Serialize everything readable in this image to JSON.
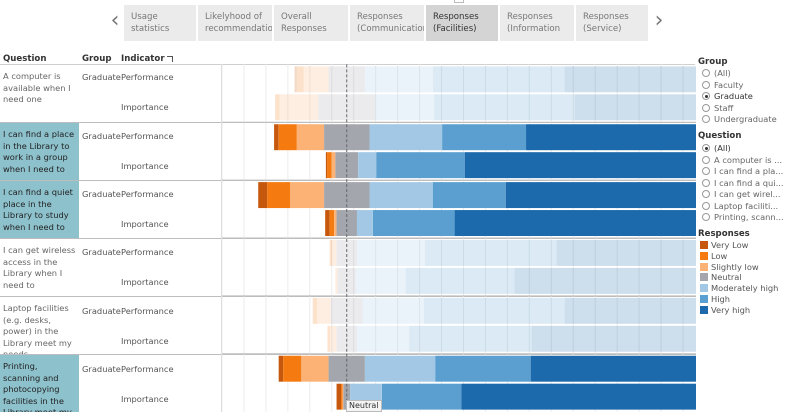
{
  "tabs": [
    {
      "label": "Usage statistics"
    },
    {
      "label": "Likelyhood of recommendation"
    },
    {
      "label": "Overall Responses"
    },
    {
      "label": "Responses (Communication)"
    },
    {
      "label": "Responses (Facilities)",
      "active": true
    },
    {
      "label": "Responses (Information"
    },
    {
      "label": "Responses (Service)"
    }
  ],
  "nav": {
    "left": "‹",
    "right": "›"
  },
  "headers": {
    "question": "Question",
    "group": "Group",
    "indicator": "Indicator"
  },
  "rows": [
    {
      "question": "A computer is available when I need one",
      "group": "Graduate",
      "performance": "Performance",
      "importance": "Importance",
      "highlight": false
    },
    {
      "question": "I can find a place in the Library to work in a group when I need to",
      "group": "Graduate",
      "performance": "Performance",
      "importance": "Importance",
      "highlight": true
    },
    {
      "question": "I can find a quiet place in the Library to study when I need to",
      "group": "Graduate",
      "performance": "Performance",
      "importance": "Importance",
      "highlight": true
    },
    {
      "question": "I can get wireless access in the Library when I need to",
      "group": "Graduate",
      "performance": "Performance",
      "importance": "Importance",
      "highlight": false
    },
    {
      "question": "Laptop facilities (e.g. desks, power) in the Library meet my needs",
      "group": "Graduate",
      "performance": "Performance",
      "importance": "Importance",
      "highlight": false
    },
    {
      "question": "Printing, scanning and photocopying facilities in the Library meet my nee..",
      "group": "Graduate",
      "performance": "Performance",
      "importance": "Importance",
      "highlight": true
    }
  ],
  "group_filter": {
    "title": "Group",
    "options": [
      "(All)",
      "Faculty",
      "Graduate",
      "Staff",
      "Undergraduate"
    ],
    "selected": "Graduate"
  },
  "question_filter": {
    "title": "Question",
    "options": [
      "(All)",
      "A computer is ...",
      "I can find a pla...",
      "I can find a qui...",
      "I can get wirel...",
      "Laptop faciliti...",
      "Printing, scann..."
    ],
    "selected": "(All)"
  },
  "legend": {
    "title": "Responses",
    "items": [
      {
        "label": "Very Low",
        "color": "#c5580d"
      },
      {
        "label": "Low",
        "color": "#f57b10"
      },
      {
        "label": "Slightly low",
        "color": "#fcb275"
      },
      {
        "label": "Neutral",
        "color": "#a4a6ad"
      },
      {
        "label": "Moderately high",
        "color": "#a3c8e6"
      },
      {
        "label": "High",
        "color": "#5a9fcf"
      },
      {
        "label": "Very high",
        "color": "#1c6aab"
      }
    ]
  },
  "tooltip": "Neutral",
  "chart_data": {
    "type": "bar",
    "categories": [
      "A computer is available when I need one / Performance",
      "A computer is available when I need one / Importance",
      "Place to work in a group / Performance",
      "Place to work in a group / Importance",
      "Quiet place to study / Performance",
      "Quiet place to study / Importance",
      "Wireless access / Performance",
      "Wireless access / Importance",
      "Laptop facilities / Performance",
      "Laptop facilities / Importance",
      "Printing, scanning and photocopying / Performance",
      "Printing, scanning and photocopying / Importance"
    ],
    "neutral_centered": true,
    "series": [
      {
        "name": "Very Low",
        "values": [
          0.5,
          0.0,
          1.0,
          0.3,
          2.0,
          1.0,
          0.0,
          0.0,
          0.0,
          0.0,
          1.0,
          1.0
        ]
      },
      {
        "name": "Low",
        "values": [
          1.5,
          1.0,
          4.0,
          1.0,
          5.0,
          1.0,
          0.5,
          0.0,
          1.0,
          0.5,
          4.0,
          0.3
        ]
      },
      {
        "name": "Slightly low",
        "values": [
          5.5,
          8.5,
          6.0,
          0.8,
          7.5,
          0.5,
          1.0,
          0.5,
          3.0,
          1.5,
          6.0,
          0.2
        ]
      },
      {
        "name": "Neutral",
        "values": [
          8.0,
          12.5,
          10.0,
          5.0,
          10.0,
          4.5,
          4.5,
          4.0,
          7.0,
          4.5,
          8.0,
          1.5
        ]
      },
      {
        "name": "Moderately high",
        "values": [
          15.0,
          13.0,
          16.0,
          4.0,
          14.0,
          3.5,
          15.0,
          11.0,
          13.5,
          11.5,
          15.5,
          7.0
        ]
      },
      {
        "name": "High",
        "values": [
          29.0,
          31.0,
          18.5,
          19.5,
          16.0,
          18.0,
          29.0,
          24.0,
          31.0,
          27.0,
          21.0,
          17.5
        ]
      },
      {
        "name": "Very high",
        "values": [
          40.5,
          34.0,
          44.5,
          69.5,
          45.5,
          71.5,
          50.0,
          60.5,
          44.5,
          55.0,
          44.5,
          72.5
        ]
      }
    ]
  }
}
